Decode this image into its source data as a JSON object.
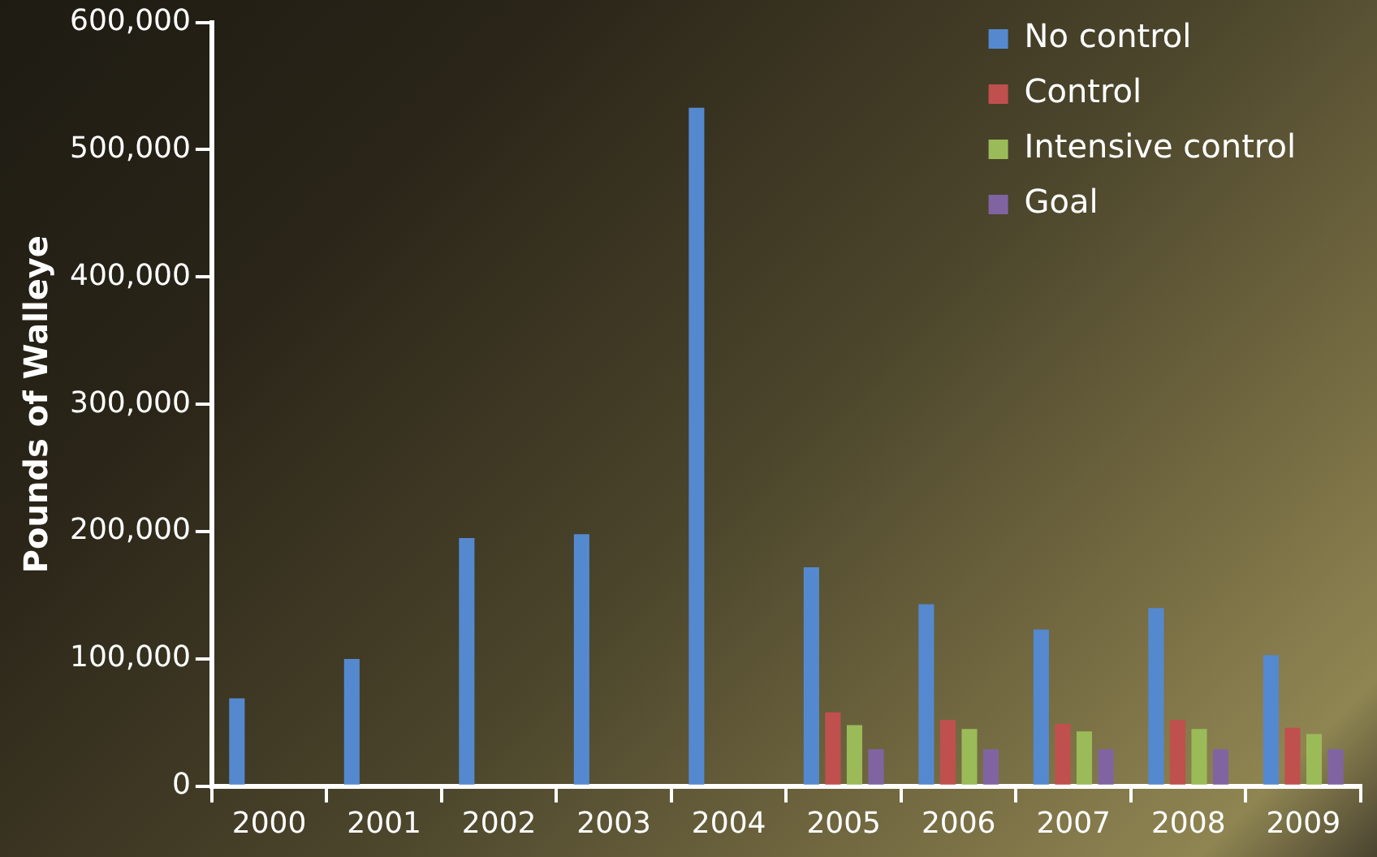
{
  "chart_data": {
    "type": "bar",
    "ylabel": "Pounds of Walleye",
    "categories": [
      "2000",
      "2001",
      "2002",
      "2003",
      "2004",
      "2005",
      "2006",
      "2007",
      "2008",
      "2009"
    ],
    "series": [
      {
        "name": "No control",
        "color": "#5589cf",
        "values": [
          69000,
          100000,
          195000,
          198000,
          533000,
          172000,
          143000,
          123000,
          140000,
          103000
        ]
      },
      {
        "name": "Control",
        "color": "#c0504d",
        "values": [
          null,
          null,
          null,
          null,
          null,
          58000,
          52000,
          49000,
          52000,
          46000
        ]
      },
      {
        "name": "Intensive control",
        "color": "#9bbb59",
        "values": [
          null,
          null,
          null,
          null,
          null,
          48000,
          45000,
          43000,
          45000,
          41000
        ]
      },
      {
        "name": "Goal",
        "color": "#8064a2",
        "values": [
          null,
          null,
          null,
          null,
          null,
          29000,
          29000,
          29000,
          29000,
          29000
        ]
      }
    ],
    "ylim": [
      0,
      600000
    ],
    "yticks": [
      {
        "value": 0,
        "label": "0"
      },
      {
        "value": 100000,
        "label": "100,000"
      },
      {
        "value": 200000,
        "label": "200,000"
      },
      {
        "value": 300000,
        "label": "300,000"
      },
      {
        "value": 400000,
        "label": "400,000"
      },
      {
        "value": 500000,
        "label": "500,000"
      },
      {
        "value": 600000,
        "label": "600,000"
      }
    ],
    "grid": false,
    "legend": "top right"
  }
}
